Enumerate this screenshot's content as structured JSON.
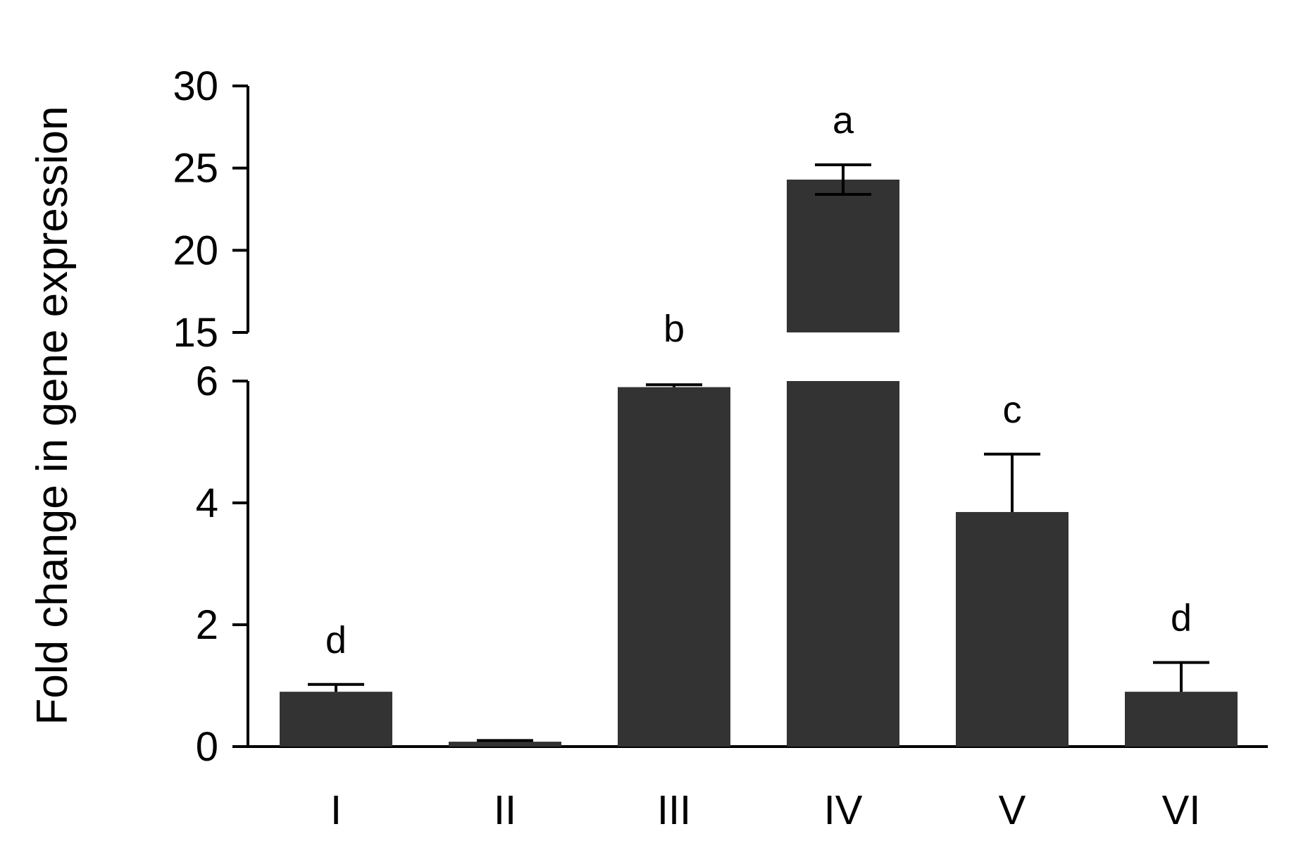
{
  "chart_data": {
    "type": "bar",
    "title": "",
    "xlabel": "",
    "ylabel": "Fold change in gene expression",
    "categories": [
      "I",
      "II",
      "III",
      "IV",
      "V",
      "VI"
    ],
    "values": [
      0.9,
      0.08,
      5.9,
      24.3,
      3.85,
      0.9
    ],
    "errors": [
      0.12,
      0.02,
      0.04,
      0.9,
      0.95,
      0.48
    ],
    "significance": [
      "d",
      "",
      "b",
      "a",
      "c",
      "d"
    ],
    "bar_color": "#333333",
    "axis_break": {
      "lower_range": [
        0,
        6
      ],
      "upper_range": [
        15,
        30
      ]
    },
    "lower_ticks": [
      "0",
      "2",
      "4",
      "6"
    ],
    "upper_ticks": [
      "15",
      "20",
      "25",
      "30"
    ],
    "grid": false,
    "legend": "none"
  }
}
